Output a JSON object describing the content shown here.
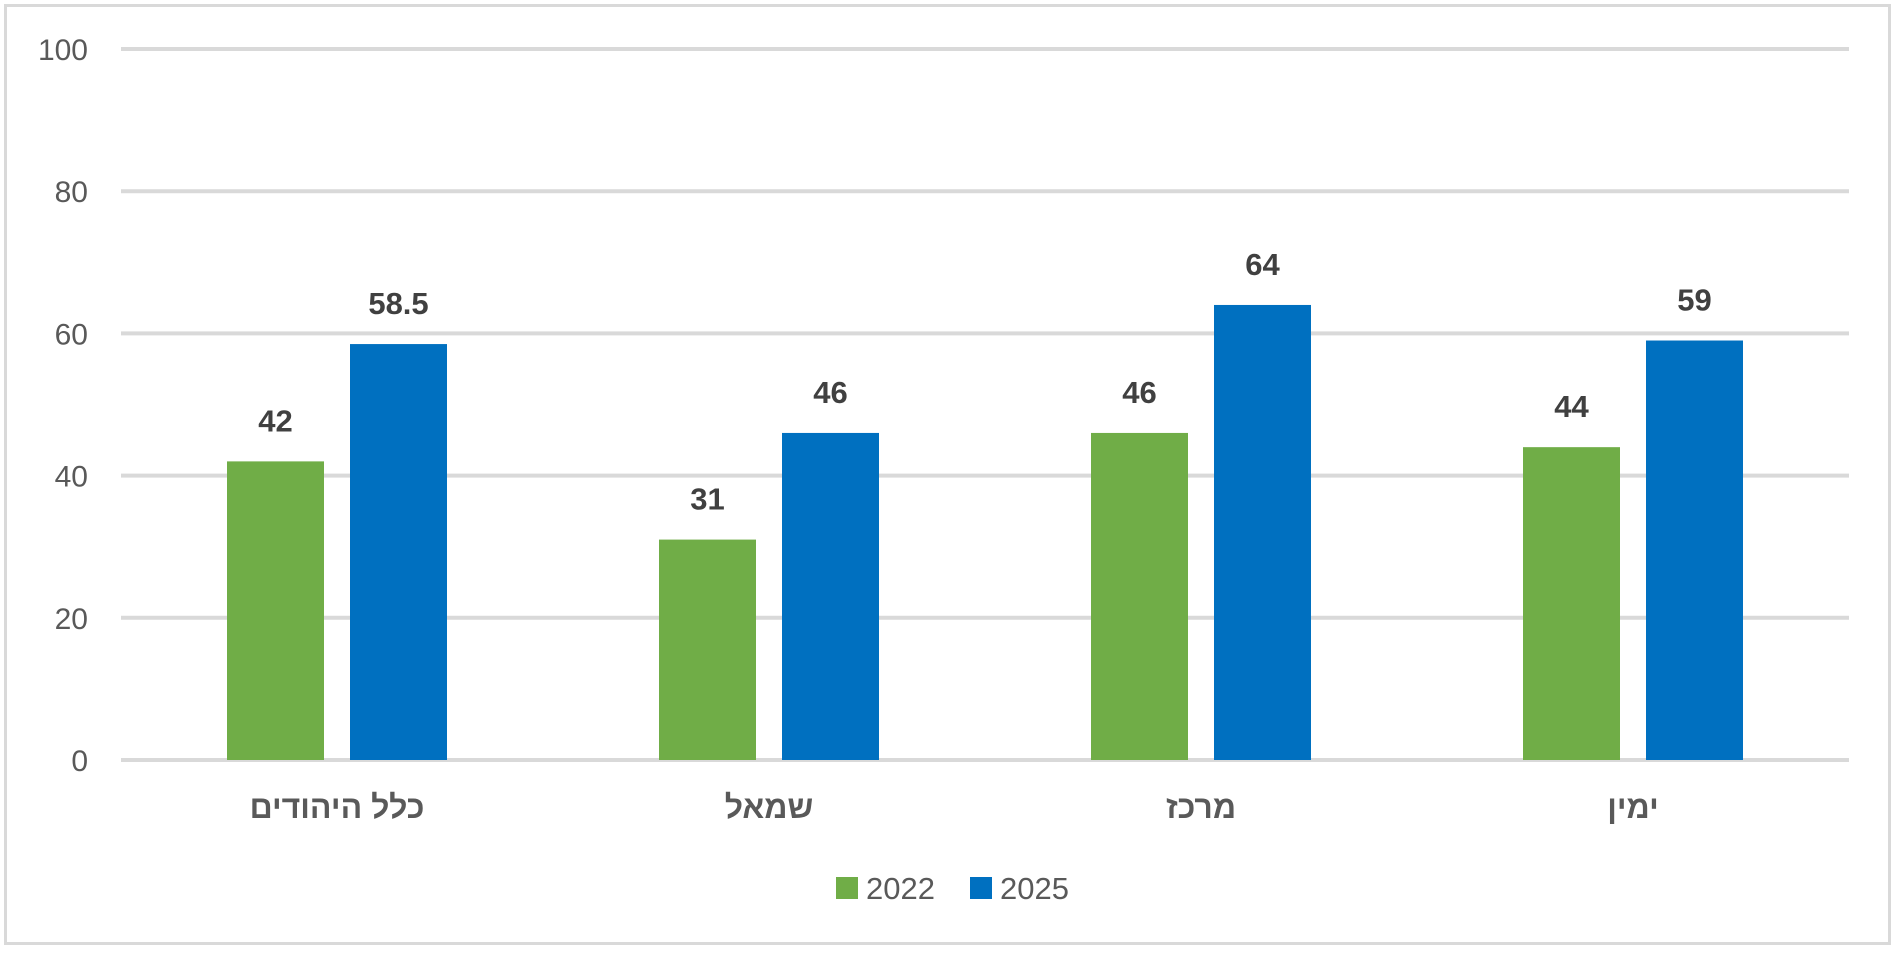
{
  "chart_data": {
    "type": "bar",
    "categories": [
      "כלל היהודים",
      "שמאל",
      "מרכז",
      "ימין"
    ],
    "series": [
      {
        "name": "2022",
        "color": "#70ad47",
        "values": [
          42,
          31,
          46,
          44
        ]
      },
      {
        "name": "2025",
        "color": "#0070c0",
        "values": [
          58.5,
          46,
          64,
          59
        ]
      }
    ],
    "data_labels": [
      [
        "42",
        "31",
        "46",
        "44"
      ],
      [
        "58.5",
        "46",
        "64",
        "59"
      ]
    ],
    "ylim": [
      0,
      100
    ],
    "yticks": [
      0,
      20,
      40,
      60,
      80,
      100
    ],
    "ytick_labels": [
      "0",
      "20",
      "40",
      "60",
      "80",
      "100"
    ],
    "grid": true,
    "legend_position": "bottom",
    "title": "",
    "xlabel": "",
    "ylabel": ""
  }
}
